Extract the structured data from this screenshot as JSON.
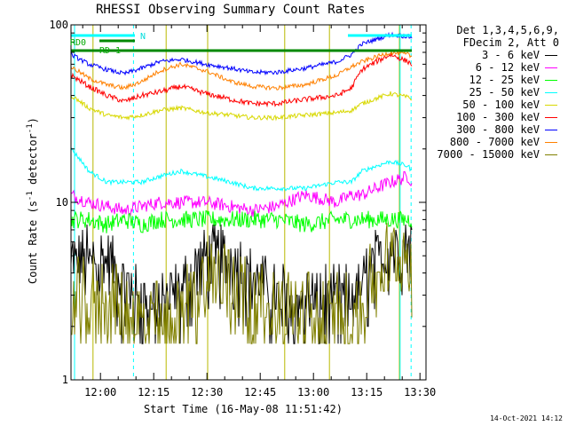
{
  "chart_data": {
    "type": "line",
    "title": "RHESSI Observing Summary Count Rates",
    "xlabel": "Start Time (16-May-08 11:51:42)",
    "ylabel": "Count Rate (s",
    "ylabel_sup": "-1",
    "ylabel_tail": " detector",
    "ylabel_close": ")",
    "yscale": "log",
    "ylim": [
      1,
      100
    ],
    "ytick_labels": [
      "1",
      "10",
      "100"
    ],
    "xlim_minutes": [
      0,
      100
    ],
    "xtick_labels": [
      "12:00",
      "12:15",
      "12:30",
      "12:45",
      "13:00",
      "13:15",
      "13:30"
    ],
    "xticks_minutes": [
      8.3,
      23.3,
      38.3,
      53.3,
      68.3,
      83.3,
      98.3
    ],
    "legend_header": [
      "Det 1,3,4,5,6,9,",
      "FDecim 2, Att 0"
    ],
    "flag_labels": {
      "rd0": "RD0",
      "rd1": "RD 1",
      "n": "N"
    },
    "footer_date": "14-Oct-2021 14:12",
    "knots_minutes": [
      0,
      5,
      10,
      15,
      20,
      25,
      31,
      38,
      45,
      51,
      58,
      66,
      75,
      79,
      82,
      90,
      95,
      96
    ],
    "eclipse_minutes": [
      [
        6.2,
        26.8
      ],
      [
        38.5,
        60.2
      ],
      [
        72.8,
        92.5
      ]
    ],
    "series": [
      {
        "name": "3 - 6 keV",
        "color": "#000000",
        "noise": 0.7,
        "quant": 0.5,
        "eclipse_value": 0.6,
        "values": [
          5,
          5,
          5,
          3.5,
          3,
          2.8,
          3.5,
          5,
          5,
          4,
          3,
          3,
          3,
          3,
          3.5,
          6,
          6,
          6.5
        ]
      },
      {
        "name": "6 - 12 keV",
        "color": "#ff00ff",
        "noise": 0.15,
        "quant": 0,
        "eclipse_value": 4,
        "values": [
          11,
          10,
          9.5,
          9,
          9.5,
          10,
          10,
          10,
          9.5,
          9,
          9.5,
          11,
          10,
          11,
          11,
          13,
          14,
          13
        ]
      },
      {
        "name": "12 - 25 keV",
        "color": "#00ff00",
        "noise": 0.2,
        "quant": 0,
        "eclipse_value": 3,
        "values": [
          8,
          8,
          7.5,
          8,
          7.5,
          8,
          8,
          8,
          8,
          8,
          8,
          7.5,
          8,
          8,
          8,
          8,
          8,
          8
        ]
      },
      {
        "name": "25 - 50 keV",
        "color": "#00ffff",
        "noise": 0.05,
        "quant": 0,
        "eclipse_value": 6,
        "values": [
          20,
          15,
          13,
          13,
          13,
          14,
          15,
          14,
          13,
          12,
          12,
          12,
          13,
          13,
          15,
          17,
          16,
          15
        ]
      },
      {
        "name": "50 - 100 keV",
        "color": "#d8d800",
        "noise": 0.05,
        "quant": 0,
        "eclipse_value": 8,
        "values": [
          40,
          34,
          31,
          30,
          31,
          33,
          34,
          32,
          31,
          30,
          30,
          31,
          32,
          33,
          36,
          41,
          39,
          38
        ]
      },
      {
        "name": "100 - 300 keV",
        "color": "#ff0000",
        "noise": 0.06,
        "quant": 0,
        "eclipse_value": 30,
        "values": [
          52,
          45,
          40,
          37,
          40,
          42,
          45,
          41,
          38,
          36,
          36,
          38,
          40,
          44,
          56,
          68,
          62,
          60
        ]
      },
      {
        "name": "300 - 800 keV",
        "color": "#0000ff",
        "noise": 0.05,
        "quant": 0,
        "eclipse_value": 60,
        "values": [
          68,
          60,
          56,
          53,
          57,
          62,
          64,
          60,
          57,
          54,
          54,
          57,
          62,
          68,
          78,
          88,
          86,
          85
        ]
      },
      {
        "name": "800 - 7000 keV",
        "color": "#ff8000",
        "noise": 0.05,
        "quant": 0,
        "eclipse_value": 40,
        "values": [
          58,
          50,
          46,
          44,
          48,
          55,
          60,
          55,
          48,
          45,
          44,
          46,
          52,
          58,
          62,
          70,
          68,
          66
        ]
      },
      {
        "name": "7000 - 15000 keV",
        "color": "#808000",
        "noise": 0.9,
        "quant": 0.45,
        "eclipse_value": 0.6,
        "values": [
          3,
          3,
          3,
          2.5,
          2.2,
          2.2,
          2.5,
          4,
          4,
          3,
          2.5,
          2.5,
          2.5,
          2.5,
          3,
          5,
          5.5,
          5
        ]
      }
    ]
  }
}
